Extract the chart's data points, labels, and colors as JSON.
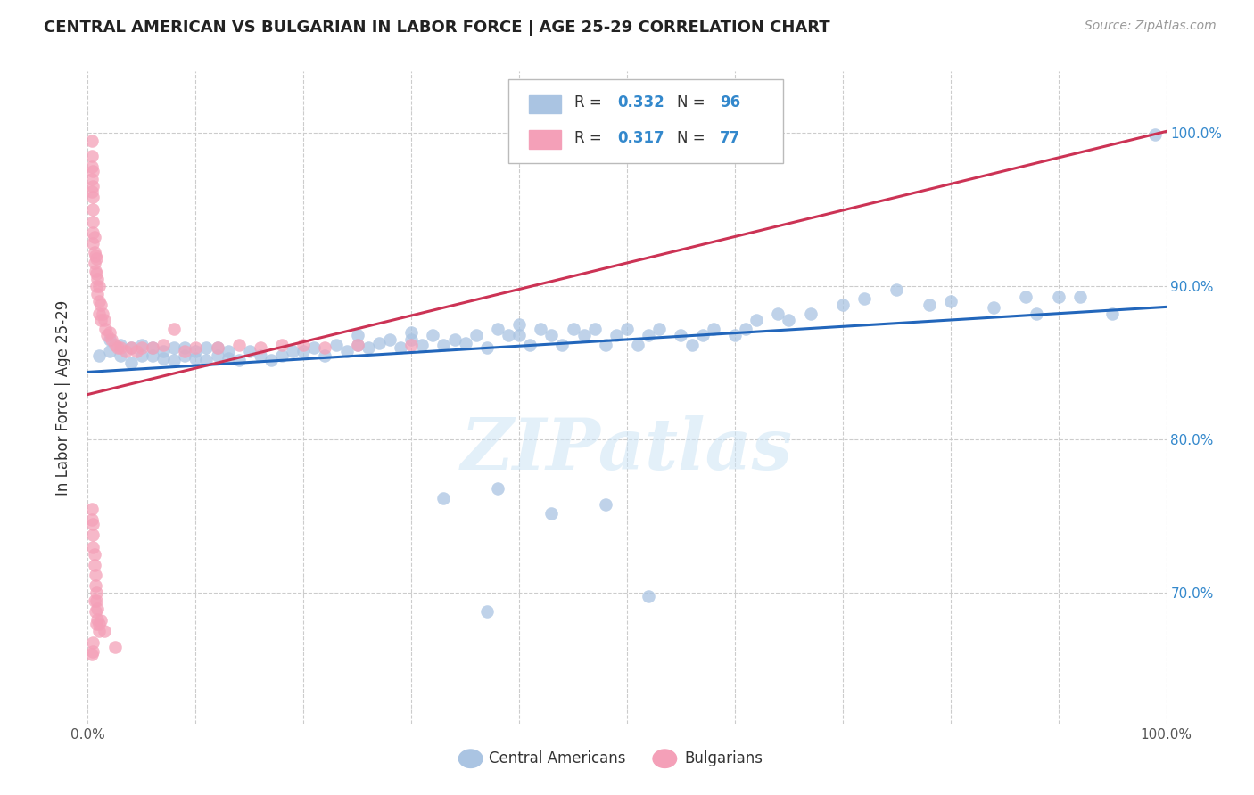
{
  "title": "CENTRAL AMERICAN VS BULGARIAN IN LABOR FORCE | AGE 25-29 CORRELATION CHART",
  "source": "Source: ZipAtlas.com",
  "ylabel": "In Labor Force | Age 25-29",
  "watermark": "ZIPatlas",
  "blue_R": 0.332,
  "blue_N": 96,
  "pink_R": 0.317,
  "pink_N": 77,
  "xlim": [
    0.0,
    1.0
  ],
  "ylim": [
    0.615,
    1.04
  ],
  "xticks": [
    0.0,
    0.1,
    0.2,
    0.3,
    0.4,
    0.5,
    0.6,
    0.7,
    0.8,
    0.9,
    1.0
  ],
  "yticks": [
    0.7,
    0.8,
    0.9,
    1.0
  ],
  "right_ytick_labels": [
    "70.0%",
    "80.0%",
    "90.0%",
    "100.0%"
  ],
  "xtick_labels": [
    "0.0%",
    "",
    "",
    "",
    "",
    "",
    "",
    "",
    "",
    "",
    "100.0%"
  ],
  "blue_color": "#aac4e2",
  "blue_line_color": "#2266bb",
  "pink_color": "#f4a0b8",
  "pink_line_color": "#cc3355",
  "grid_color": "#cccccc",
  "background_color": "#ffffff",
  "title_color": "#222222",
  "legend_blue_fill": "#aac4e2",
  "legend_pink_fill": "#f4a0b8",
  "blue_scatter_x": [
    0.01,
    0.02,
    0.02,
    0.03,
    0.03,
    0.04,
    0.04,
    0.05,
    0.05,
    0.06,
    0.06,
    0.07,
    0.07,
    0.08,
    0.08,
    0.09,
    0.09,
    0.1,
    0.1,
    0.11,
    0.11,
    0.12,
    0.12,
    0.13,
    0.13,
    0.14,
    0.15,
    0.16,
    0.17,
    0.18,
    0.19,
    0.2,
    0.21,
    0.22,
    0.23,
    0.24,
    0.25,
    0.25,
    0.26,
    0.27,
    0.28,
    0.29,
    0.3,
    0.3,
    0.31,
    0.32,
    0.33,
    0.34,
    0.35,
    0.36,
    0.37,
    0.38,
    0.39,
    0.4,
    0.4,
    0.41,
    0.42,
    0.43,
    0.44,
    0.45,
    0.46,
    0.47,
    0.48,
    0.49,
    0.5,
    0.51,
    0.52,
    0.53,
    0.55,
    0.56,
    0.57,
    0.58,
    0.6,
    0.61,
    0.62,
    0.64,
    0.65,
    0.67,
    0.7,
    0.72,
    0.75,
    0.78,
    0.8,
    0.84,
    0.87,
    0.88,
    0.9,
    0.92,
    0.95,
    0.33,
    0.38,
    0.43,
    0.48,
    0.37,
    0.52,
    0.99
  ],
  "blue_scatter_y": [
    0.855,
    0.858,
    0.865,
    0.855,
    0.862,
    0.85,
    0.86,
    0.855,
    0.862,
    0.855,
    0.86,
    0.853,
    0.858,
    0.852,
    0.86,
    0.855,
    0.86,
    0.853,
    0.858,
    0.852,
    0.86,
    0.855,
    0.86,
    0.853,
    0.858,
    0.852,
    0.858,
    0.855,
    0.852,
    0.855,
    0.858,
    0.858,
    0.86,
    0.855,
    0.862,
    0.858,
    0.862,
    0.868,
    0.86,
    0.863,
    0.865,
    0.86,
    0.865,
    0.87,
    0.862,
    0.868,
    0.862,
    0.865,
    0.863,
    0.868,
    0.86,
    0.872,
    0.868,
    0.868,
    0.875,
    0.862,
    0.872,
    0.868,
    0.862,
    0.872,
    0.868,
    0.872,
    0.862,
    0.868,
    0.872,
    0.862,
    0.868,
    0.872,
    0.868,
    0.862,
    0.868,
    0.872,
    0.868,
    0.872,
    0.878,
    0.882,
    0.878,
    0.882,
    0.888,
    0.892,
    0.898,
    0.888,
    0.89,
    0.886,
    0.893,
    0.882,
    0.893,
    0.893,
    0.882,
    0.762,
    0.768,
    0.752,
    0.758,
    0.688,
    0.698,
    0.999
  ],
  "pink_scatter_x": [
    0.004,
    0.004,
    0.004,
    0.004,
    0.004,
    0.005,
    0.005,
    0.005,
    0.005,
    0.005,
    0.005,
    0.005,
    0.006,
    0.006,
    0.006,
    0.007,
    0.007,
    0.008,
    0.008,
    0.008,
    0.009,
    0.009,
    0.01,
    0.01,
    0.01,
    0.012,
    0.012,
    0.014,
    0.015,
    0.016,
    0.018,
    0.02,
    0.022,
    0.025,
    0.028,
    0.03,
    0.035,
    0.04,
    0.045,
    0.05,
    0.06,
    0.07,
    0.08,
    0.09,
    0.1,
    0.12,
    0.14,
    0.16,
    0.18,
    0.2,
    0.22,
    0.25,
    0.3,
    0.004,
    0.004,
    0.005,
    0.005,
    0.005,
    0.006,
    0.006,
    0.007,
    0.007,
    0.008,
    0.008,
    0.009,
    0.009,
    0.01,
    0.01,
    0.005,
    0.005,
    0.004,
    0.006,
    0.007,
    0.008,
    0.012,
    0.015,
    0.025
  ],
  "pink_scatter_y": [
    0.995,
    0.985,
    0.978,
    0.97,
    0.962,
    0.975,
    0.965,
    0.958,
    0.95,
    0.942,
    0.935,
    0.928,
    0.932,
    0.922,
    0.915,
    0.92,
    0.91,
    0.918,
    0.908,
    0.9,
    0.905,
    0.895,
    0.9,
    0.89,
    0.882,
    0.888,
    0.878,
    0.882,
    0.878,
    0.872,
    0.868,
    0.87,
    0.865,
    0.862,
    0.86,
    0.86,
    0.858,
    0.86,
    0.858,
    0.86,
    0.86,
    0.862,
    0.872,
    0.858,
    0.86,
    0.86,
    0.862,
    0.86,
    0.862,
    0.862,
    0.86,
    0.862,
    0.862,
    0.755,
    0.748,
    0.745,
    0.738,
    0.73,
    0.725,
    0.718,
    0.712,
    0.705,
    0.7,
    0.695,
    0.69,
    0.683,
    0.68,
    0.675,
    0.668,
    0.662,
    0.66,
    0.695,
    0.688,
    0.68,
    0.682,
    0.675,
    0.665
  ]
}
